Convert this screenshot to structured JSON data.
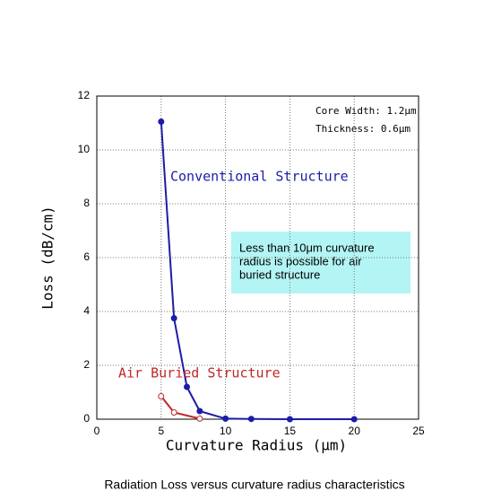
{
  "chart_data": {
    "type": "line",
    "x_label": "Curvature Radius (μm)",
    "y_label": "Loss (dB/cm)",
    "caption": "Radiation Loss versus curvature radius characteristics",
    "annotations": [
      "Core Width: 1.2μm",
      "Thickness: 0.6μm"
    ],
    "note_lines": [
      "Less than 10μm curvature",
      "radius is possible for air",
      "buried structure"
    ],
    "series": [
      {
        "name": "Conventional Structure",
        "color": "#1c1ca8",
        "x": [
          5,
          6,
          7,
          8,
          10,
          12,
          15,
          20
        ],
        "values": [
          11.05,
          3.75,
          1.2,
          0.3,
          0.02,
          0.01,
          0,
          0
        ]
      },
      {
        "name": "Air Buried Structure",
        "color": "#c02828",
        "x": [
          5,
          6,
          8
        ],
        "values": [
          0.85,
          0.25,
          0.02
        ]
      }
    ],
    "xlim": [
      0,
      25
    ],
    "xticks": [
      0,
      5,
      10,
      15,
      20,
      25
    ],
    "ylim": [
      0,
      12
    ],
    "yticks": [
      0,
      2,
      4,
      6,
      8,
      10,
      12
    ],
    "grid": true
  }
}
